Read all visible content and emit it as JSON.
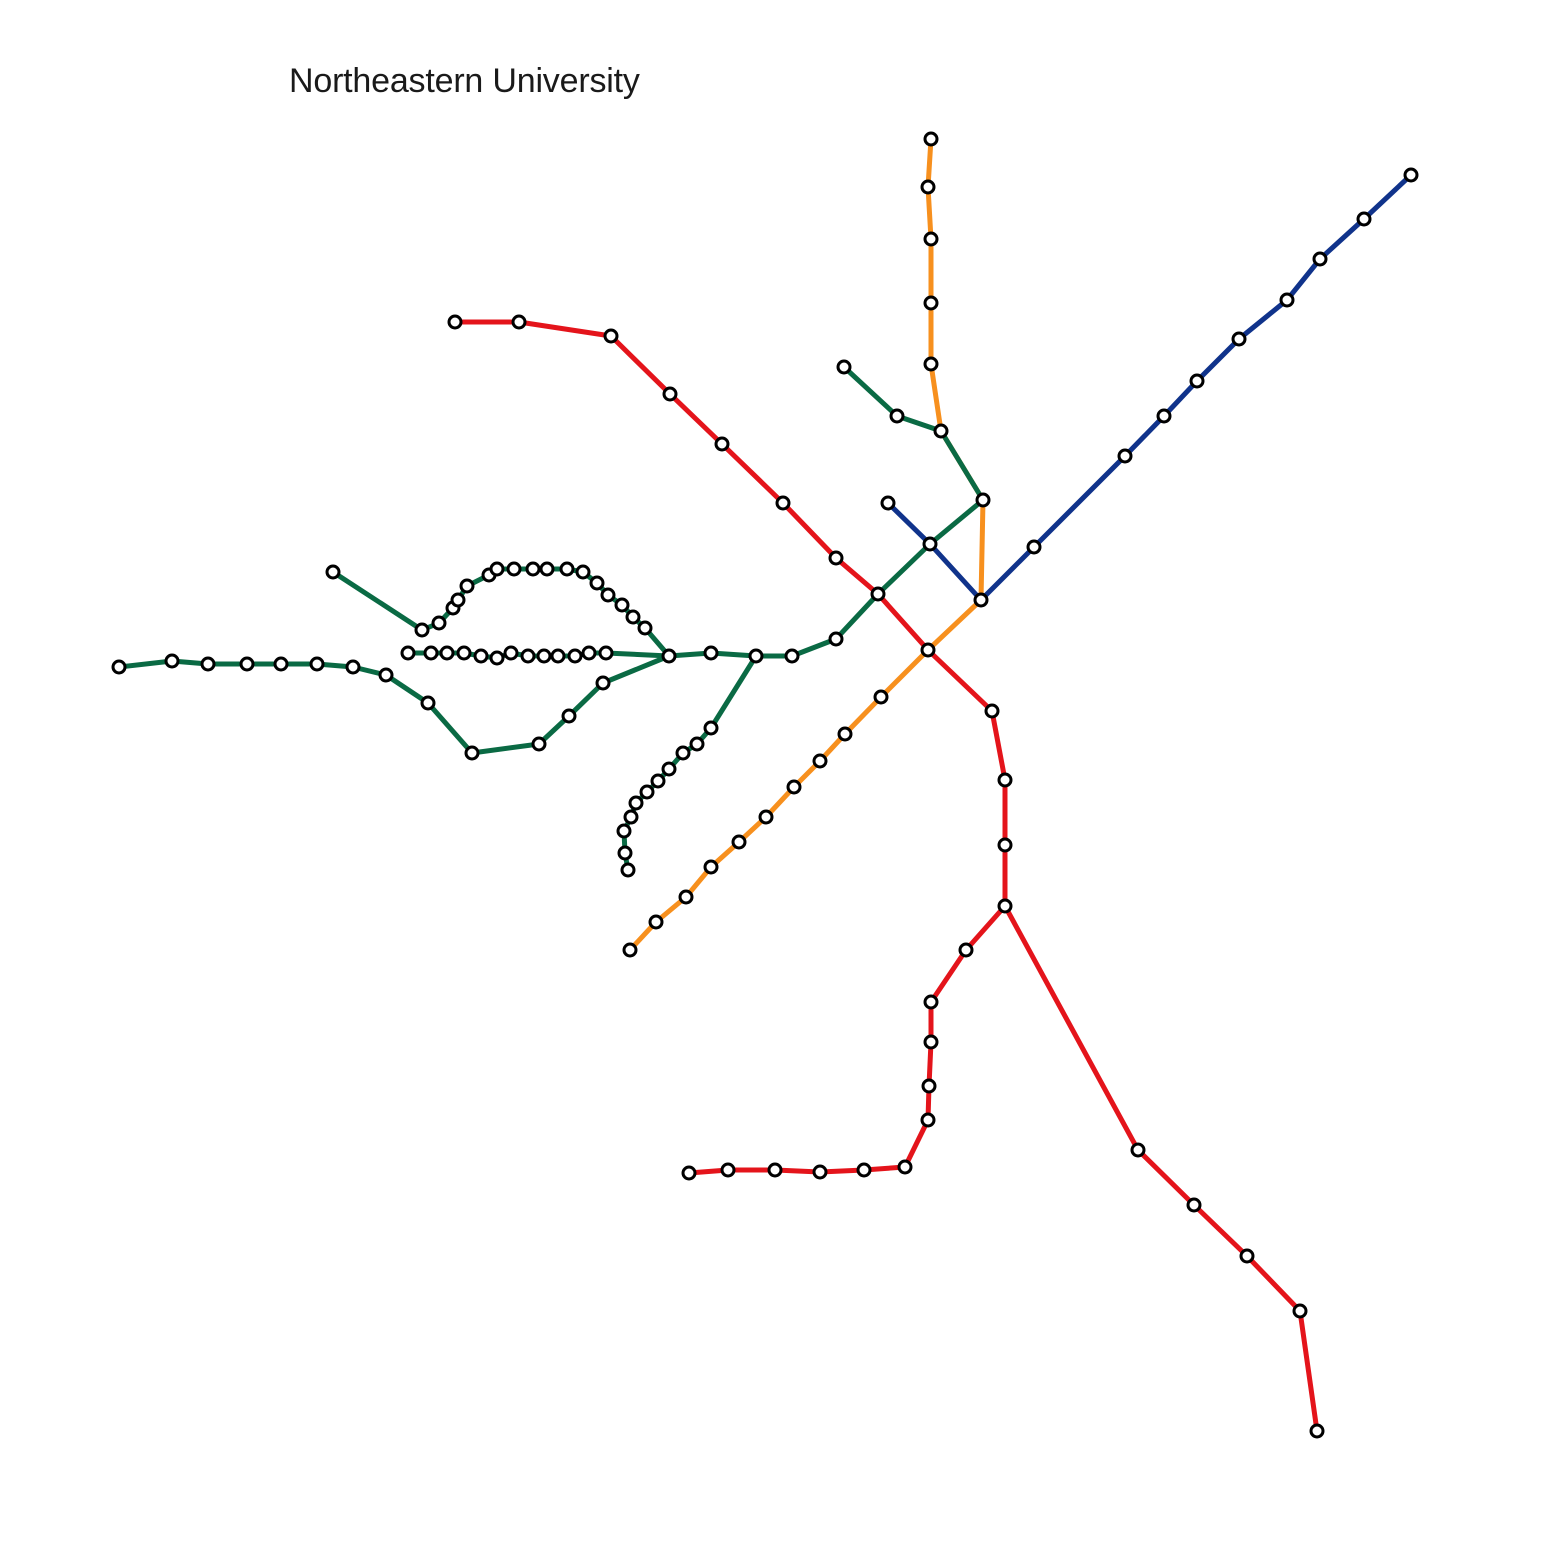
{
  "title": "Northeastern University",
  "colors": {
    "red": "#e4141b",
    "orange": "#f7901e",
    "blue": "#10338b",
    "green": "#0a6a44",
    "station_fill": "#ffffff",
    "station_stroke": "#000000",
    "background": "#ffffff"
  },
  "lines": [
    {
      "id": "red",
      "color_key": "red"
    },
    {
      "id": "orange",
      "color_key": "orange"
    },
    {
      "id": "blue",
      "color_key": "blue"
    },
    {
      "id": "green",
      "color_key": "green"
    }
  ]
}
